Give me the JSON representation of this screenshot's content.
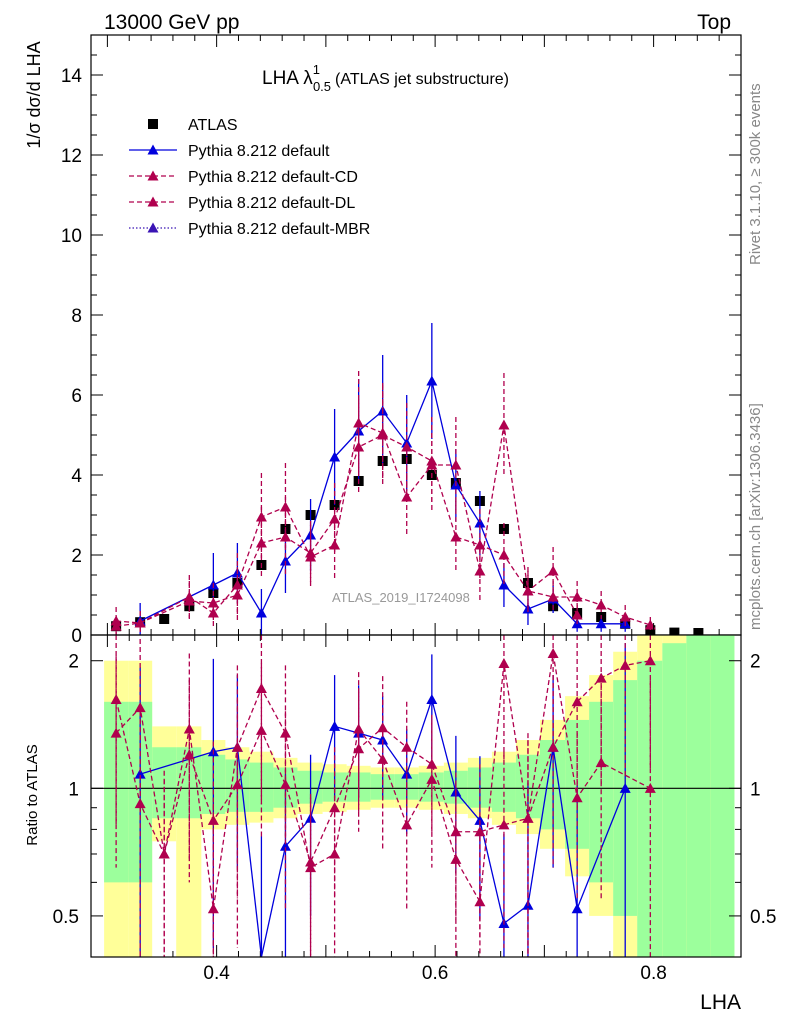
{
  "header": {
    "left": "13000 GeV pp",
    "right": "Top"
  },
  "side_labels": {
    "rivet": "Rivet 3.1.10, ≥ 300k events",
    "mcplots": "mcplots.cern.ch [arXiv:1306.3436]"
  },
  "chart_data": {
    "type": "scatter",
    "title": "LHA λ¹₀.₅ (ATLAS jet substructure)",
    "title_main": "LHA λ",
    "title_sup": "1",
    "title_sub": "0.5",
    "title_rest": "(ATLAS jet substructure)",
    "watermark": "ATLAS_2019_I1724098",
    "ylabel": "1/σ dσ/d LHA",
    "xlabel": "LHA",
    "ratio_ylabel": "Ratio to ATLAS",
    "xlim": [
      0.285,
      0.88
    ],
    "ylim": [
      0,
      15
    ],
    "ratio_ylim": [
      0.4,
      2.3
    ],
    "x_ticks": [
      "0.4",
      "0.6",
      "0.8"
    ],
    "y_ticks": [
      "0",
      "2",
      "4",
      "6",
      "8",
      "10",
      "12",
      "14"
    ],
    "ratio_ticks": [
      "0.5",
      "1",
      "2"
    ],
    "legend_placement": "top-left",
    "x": [
      0.308,
      0.33,
      0.352,
      0.375,
      0.397,
      0.419,
      0.441,
      0.463,
      0.486,
      0.508,
      0.53,
      0.552,
      0.574,
      0.597,
      0.619,
      0.641,
      0.663,
      0.685,
      0.708,
      0.73,
      0.752,
      0.774,
      0.797,
      0.819,
      0.841
    ],
    "series": [
      {
        "name": "ATLAS",
        "color": "#000000",
        "style": "data",
        "values": [
          0.22,
          0.32,
          0.4,
          0.72,
          1.05,
          1.3,
          1.75,
          2.65,
          3.0,
          3.25,
          3.85,
          4.35,
          4.4,
          4.0,
          3.8,
          3.35,
          2.65,
          1.3,
          0.72,
          0.55,
          0.45,
          0.28,
          0.12,
          0.06,
          0.05
        ]
      },
      {
        "name": "Pythia 8.212 default",
        "color": "#0000dd",
        "style": "solid",
        "values": [
          null,
          0.35,
          null,
          null,
          1.25,
          1.55,
          0.55,
          1.85,
          2.5,
          4.45,
          5.1,
          5.6,
          4.8,
          6.35,
          3.75,
          2.8,
          1.25,
          0.65,
          0.9,
          0.28,
          0.28,
          0.28,
          null,
          null,
          null
        ],
        "errors": [
          null,
          0.45,
          null,
          null,
          0.8,
          0.75,
          0.6,
          0.8,
          0.9,
          1.2,
          1.3,
          1.4,
          1.2,
          1.45,
          0.9,
          0.8,
          0.55,
          0.4,
          0.35,
          0.2,
          0.2,
          0.2,
          null,
          null,
          null
        ],
        "ratio": [
          null,
          1.08,
          null,
          null,
          1.22,
          1.25,
          0.32,
          0.73,
          0.85,
          1.4,
          1.35,
          1.3,
          1.08,
          1.62,
          0.98,
          0.84,
          0.48,
          0.53,
          1.25,
          0.52,
          null,
          1.0,
          null,
          null,
          null
        ],
        "ratio_err": [
          null,
          0.85,
          null,
          null,
          0.8,
          0.6,
          0.45,
          0.35,
          0.35,
          0.45,
          0.4,
          0.35,
          0.3,
          0.45,
          0.35,
          0.35,
          0.3,
          0.5,
          0.6,
          0.5,
          null,
          1.2,
          null,
          null,
          null
        ]
      },
      {
        "name": "Pythia 8.212 default-CD",
        "color": "#b0004e",
        "style": "dashed",
        "values": [
          0.35,
          0.3,
          null,
          0.95,
          0.55,
          1.25,
          2.95,
          3.2,
          1.95,
          2.25,
          5.3,
          5.05,
          3.45,
          4.25,
          4.25,
          1.6,
          5.25,
          1.1,
          1.6,
          0.5,
          null,
          null,
          null,
          null,
          null
        ],
        "errors": [
          0.35,
          0.3,
          null,
          0.55,
          0.4,
          0.8,
          1.1,
          1.1,
          0.8,
          0.9,
          1.3,
          1.2,
          1.0,
          1.2,
          1.2,
          0.8,
          1.3,
          0.6,
          0.6,
          0.3,
          null,
          null,
          null,
          null,
          null
        ],
        "ratio": [
          1.62,
          0.92,
          0.7,
          1.38,
          0.52,
          1.25,
          1.72,
          1.35,
          0.65,
          0.7,
          1.38,
          1.17,
          0.82,
          1.05,
          0.68,
          0.54,
          1.97,
          0.85,
          2.08,
          0.95,
          1.15,
          null,
          1.0,
          null,
          null
        ],
        "ratio_err": [
          0.8,
          0.6,
          0.4,
          0.7,
          0.4,
          0.7,
          0.8,
          0.6,
          0.3,
          0.3,
          0.5,
          0.45,
          0.3,
          0.4,
          0.35,
          0.3,
          0.8,
          0.5,
          0.8,
          0.4,
          0.6,
          null,
          0.8,
          null,
          null
        ]
      },
      {
        "name": "Pythia 8.212 default-DL",
        "color": "#b0004e",
        "style": "dashed",
        "values": [
          0.22,
          0.3,
          null,
          0.85,
          0.8,
          1.0,
          2.3,
          2.45,
          2.05,
          2.9,
          4.7,
          5.0,
          4.7,
          4.35,
          2.45,
          2.25,
          2.0,
          1.1,
          0.95,
          0.95,
          0.75,
          0.45,
          0.25,
          null,
          null
        ],
        "errors": [
          0.25,
          0.3,
          null,
          0.5,
          0.5,
          0.7,
          0.9,
          1.0,
          0.8,
          0.9,
          1.2,
          1.3,
          1.1,
          1.1,
          0.9,
          0.9,
          0.8,
          0.5,
          0.4,
          0.4,
          0.35,
          0.3,
          0.2,
          null,
          null
        ],
        "ratio": [
          1.35,
          1.55,
          0.7,
          1.2,
          0.84,
          1.02,
          1.37,
          1.02,
          0.67,
          0.9,
          1.24,
          1.39,
          1.25,
          1.14,
          0.79,
          0.79,
          0.82,
          0.85,
          1.25,
          1.6,
          1.82,
          1.95,
          2.0,
          null,
          null
        ],
        "ratio_err": [
          0.7,
          0.7,
          0.35,
          0.6,
          0.45,
          0.6,
          0.6,
          0.5,
          0.3,
          0.35,
          0.45,
          0.45,
          0.35,
          0.35,
          0.3,
          0.35,
          0.4,
          0.45,
          0.6,
          0.7,
          0.8,
          0.9,
          0.9,
          null,
          null
        ]
      },
      {
        "name": "Pythia 8.212 default-MBR",
        "color": "#3a14b4",
        "style": "dotted",
        "values": [],
        "errors": [],
        "ratio": [],
        "ratio_err": []
      }
    ],
    "ratio_bands": {
      "x_edges": [
        0.297,
        0.319,
        0.341,
        0.363,
        0.386,
        0.408,
        0.43,
        0.452,
        0.474,
        0.497,
        0.519,
        0.541,
        0.563,
        0.585,
        0.608,
        0.63,
        0.652,
        0.674,
        0.696,
        0.719,
        0.741,
        0.763,
        0.785,
        0.808,
        0.83,
        0.852,
        0.874
      ],
      "inner_lo": [
        0.6,
        0.6,
        0.85,
        0.85,
        0.87,
        0.88,
        0.88,
        0.9,
        0.92,
        0.93,
        0.93,
        0.94,
        0.94,
        0.93,
        0.92,
        0.9,
        0.88,
        0.85,
        0.8,
        0.72,
        0.6,
        0.5,
        0.4,
        0.4,
        0.4,
        0.4
      ],
      "inner_hi": [
        1.6,
        1.6,
        1.25,
        1.25,
        1.2,
        1.17,
        1.15,
        1.12,
        1.1,
        1.09,
        1.09,
        1.08,
        1.08,
        1.09,
        1.1,
        1.12,
        1.15,
        1.2,
        1.3,
        1.45,
        1.6,
        1.8,
        2.0,
        2.2,
        2.3,
        2.3
      ],
      "outer_lo": [
        0.4,
        0.4,
        0.75,
        0.4,
        0.8,
        0.82,
        0.83,
        0.85,
        0.87,
        0.88,
        0.89,
        0.9,
        0.9,
        0.89,
        0.87,
        0.85,
        0.82,
        0.78,
        0.72,
        0.62,
        0.5,
        0.4,
        0.4,
        0.4,
        0.4,
        0.4
      ],
      "outer_hi": [
        2.0,
        2.0,
        1.4,
        1.4,
        1.3,
        1.25,
        1.22,
        1.18,
        1.15,
        1.14,
        1.13,
        1.12,
        1.12,
        1.13,
        1.15,
        1.18,
        1.22,
        1.3,
        1.45,
        1.65,
        1.85,
        2.1,
        2.3,
        2.3,
        2.3,
        2.3
      ],
      "inner_color": "#9cff9c",
      "outer_color": "#ffff99"
    }
  }
}
